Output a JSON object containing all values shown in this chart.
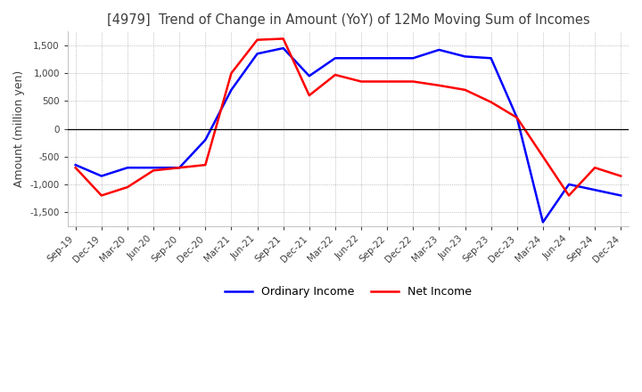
{
  "title": "[4979]  Trend of Change in Amount (YoY) of 12Mo Moving Sum of Incomes",
  "ylabel": "Amount (million yen)",
  "ylim": [
    -1750,
    1750
  ],
  "yticks": [
    -1500,
    -1000,
    -500,
    0,
    500,
    1000,
    1500
  ],
  "x_labels": [
    "Sep-19",
    "Dec-19",
    "Mar-20",
    "Jun-20",
    "Sep-20",
    "Dec-20",
    "Mar-21",
    "Jun-21",
    "Sep-21",
    "Dec-21",
    "Mar-22",
    "Jun-22",
    "Sep-22",
    "Dec-22",
    "Mar-23",
    "Jun-23",
    "Sep-23",
    "Dec-23",
    "Mar-24",
    "Jun-24",
    "Sep-24",
    "Dec-24"
  ],
  "ordinary_income": [
    -650,
    -850,
    -700,
    -700,
    -700,
    -200,
    700,
    1350,
    1450,
    950,
    1270,
    1270,
    1270,
    1270,
    1420,
    1300,
    1270,
    200,
    -1680,
    -1000,
    -1100,
    -1200
  ],
  "net_income": [
    -700,
    -1200,
    -1050,
    -750,
    -700,
    -650,
    1000,
    1600,
    1620,
    600,
    970,
    850,
    850,
    850,
    780,
    700,
    480,
    200,
    -500,
    -1200,
    -700,
    -850
  ],
  "ordinary_color": "#0000FF",
  "net_color": "#FF0000",
  "grid_color": "#999999",
  "background_color": "#FFFFFF",
  "title_color": "#404040",
  "legend_labels": [
    "Ordinary Income",
    "Net Income"
  ]
}
